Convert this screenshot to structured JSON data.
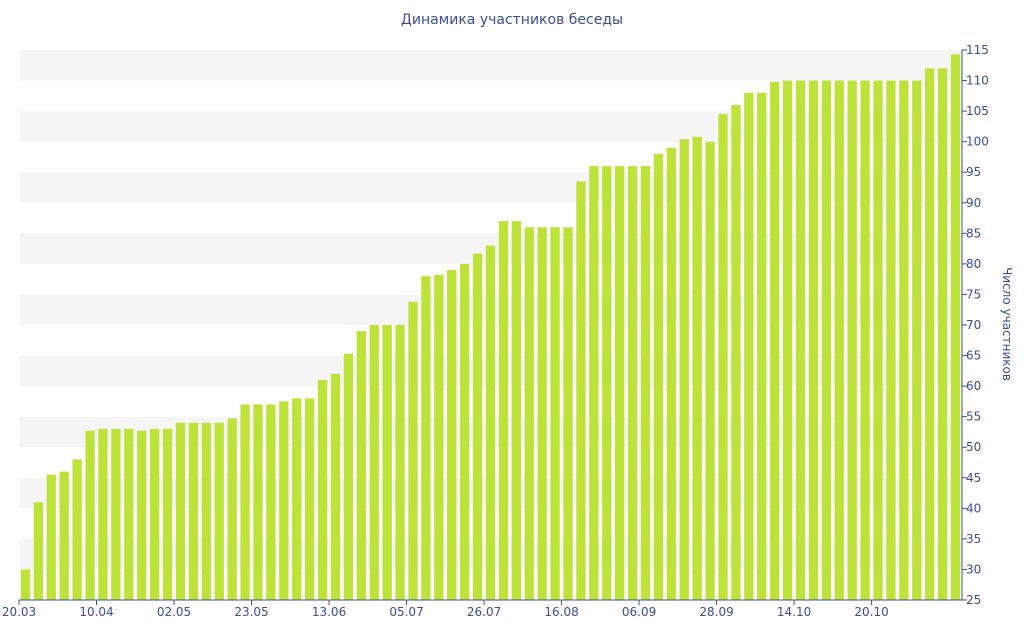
{
  "chart_data": {
    "type": "bar",
    "title": "Динамика участников беседы",
    "xlabel": "",
    "ylabel": "Число участников",
    "ylim": [
      25,
      115
    ],
    "yticks": [
      25,
      30,
      35,
      40,
      45,
      50,
      55,
      60,
      65,
      70,
      75,
      80,
      85,
      90,
      95,
      100,
      105,
      110,
      115
    ],
    "ytick_labels": [
      "25",
      "30",
      "35",
      "40",
      "45",
      "50",
      "55",
      "60",
      "65",
      "70",
      "75",
      "80",
      "85",
      "90",
      "95",
      "100",
      "105",
      "110",
      "115"
    ],
    "y_axis_side": "right",
    "grid": "alternating horizontal bands",
    "bar_color": "#bde33a",
    "band_color": "#f5f5f5",
    "text_color": "#3b4f8f",
    "xtick_labels": [
      {
        "index": 0,
        "label": "20.03"
      },
      {
        "index": 6,
        "label": "10.04"
      },
      {
        "index": 12,
        "label": "02.05"
      },
      {
        "index": 18,
        "label": "23.05"
      },
      {
        "index": 24,
        "label": "13.06"
      },
      {
        "index": 30,
        "label": "05.07"
      },
      {
        "index": 36,
        "label": "26.07"
      },
      {
        "index": 42,
        "label": "16.08"
      },
      {
        "index": 48,
        "label": "06.09"
      },
      {
        "index": 54,
        "label": "28.09"
      },
      {
        "index": 60,
        "label": "14.10"
      },
      {
        "index": 66,
        "label": "20.10"
      }
    ],
    "values": [
      30,
      41,
      45.5,
      46,
      48,
      52.7,
      53,
      53,
      53,
      52.7,
      53,
      53,
      54,
      54,
      54,
      54,
      54.7,
      57,
      57,
      57,
      57.5,
      58,
      58,
      61,
      62,
      65.3,
      69,
      70,
      70,
      70,
      73.8,
      78,
      78.2,
      79,
      80,
      81.7,
      83,
      87,
      87,
      86,
      86,
      86,
      86,
      93.5,
      96,
      96,
      96,
      96,
      96,
      98,
      99,
      100.4,
      100.8,
      100,
      104.5,
      106,
      108,
      108,
      109.8,
      110,
      110,
      110,
      110,
      110,
      110,
      110,
      110,
      110,
      110,
      110,
      112,
      112,
      114.3
    ]
  }
}
